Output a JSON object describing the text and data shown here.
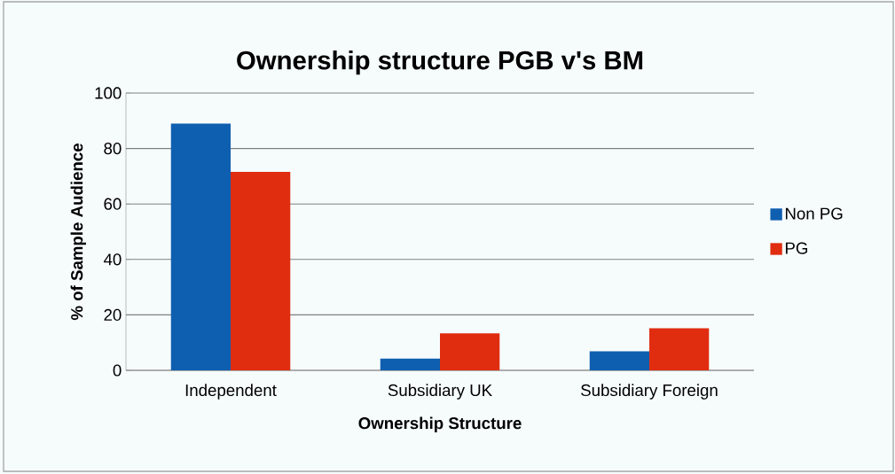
{
  "chart_data": {
    "type": "bar",
    "title": "Ownership structure PGB  v's BM",
    "xlabel": "Ownership Structure",
    "ylabel": "% of Sample Audience",
    "categories": [
      "Independent",
      "Subsidiary UK",
      "Subsidiary Foreign"
    ],
    "series": [
      {
        "name": "Non PG",
        "color": "#0f5fb0",
        "values": [
          89,
          4.2,
          6.9
        ]
      },
      {
        "name": "PG",
        "color": "#e02d10",
        "values": [
          71.6,
          13.3,
          15.2
        ]
      }
    ],
    "ylim": [
      0,
      100
    ],
    "yticks": [
      0,
      20,
      40,
      60,
      80,
      100
    ],
    "grid": "y",
    "legend": "right"
  }
}
